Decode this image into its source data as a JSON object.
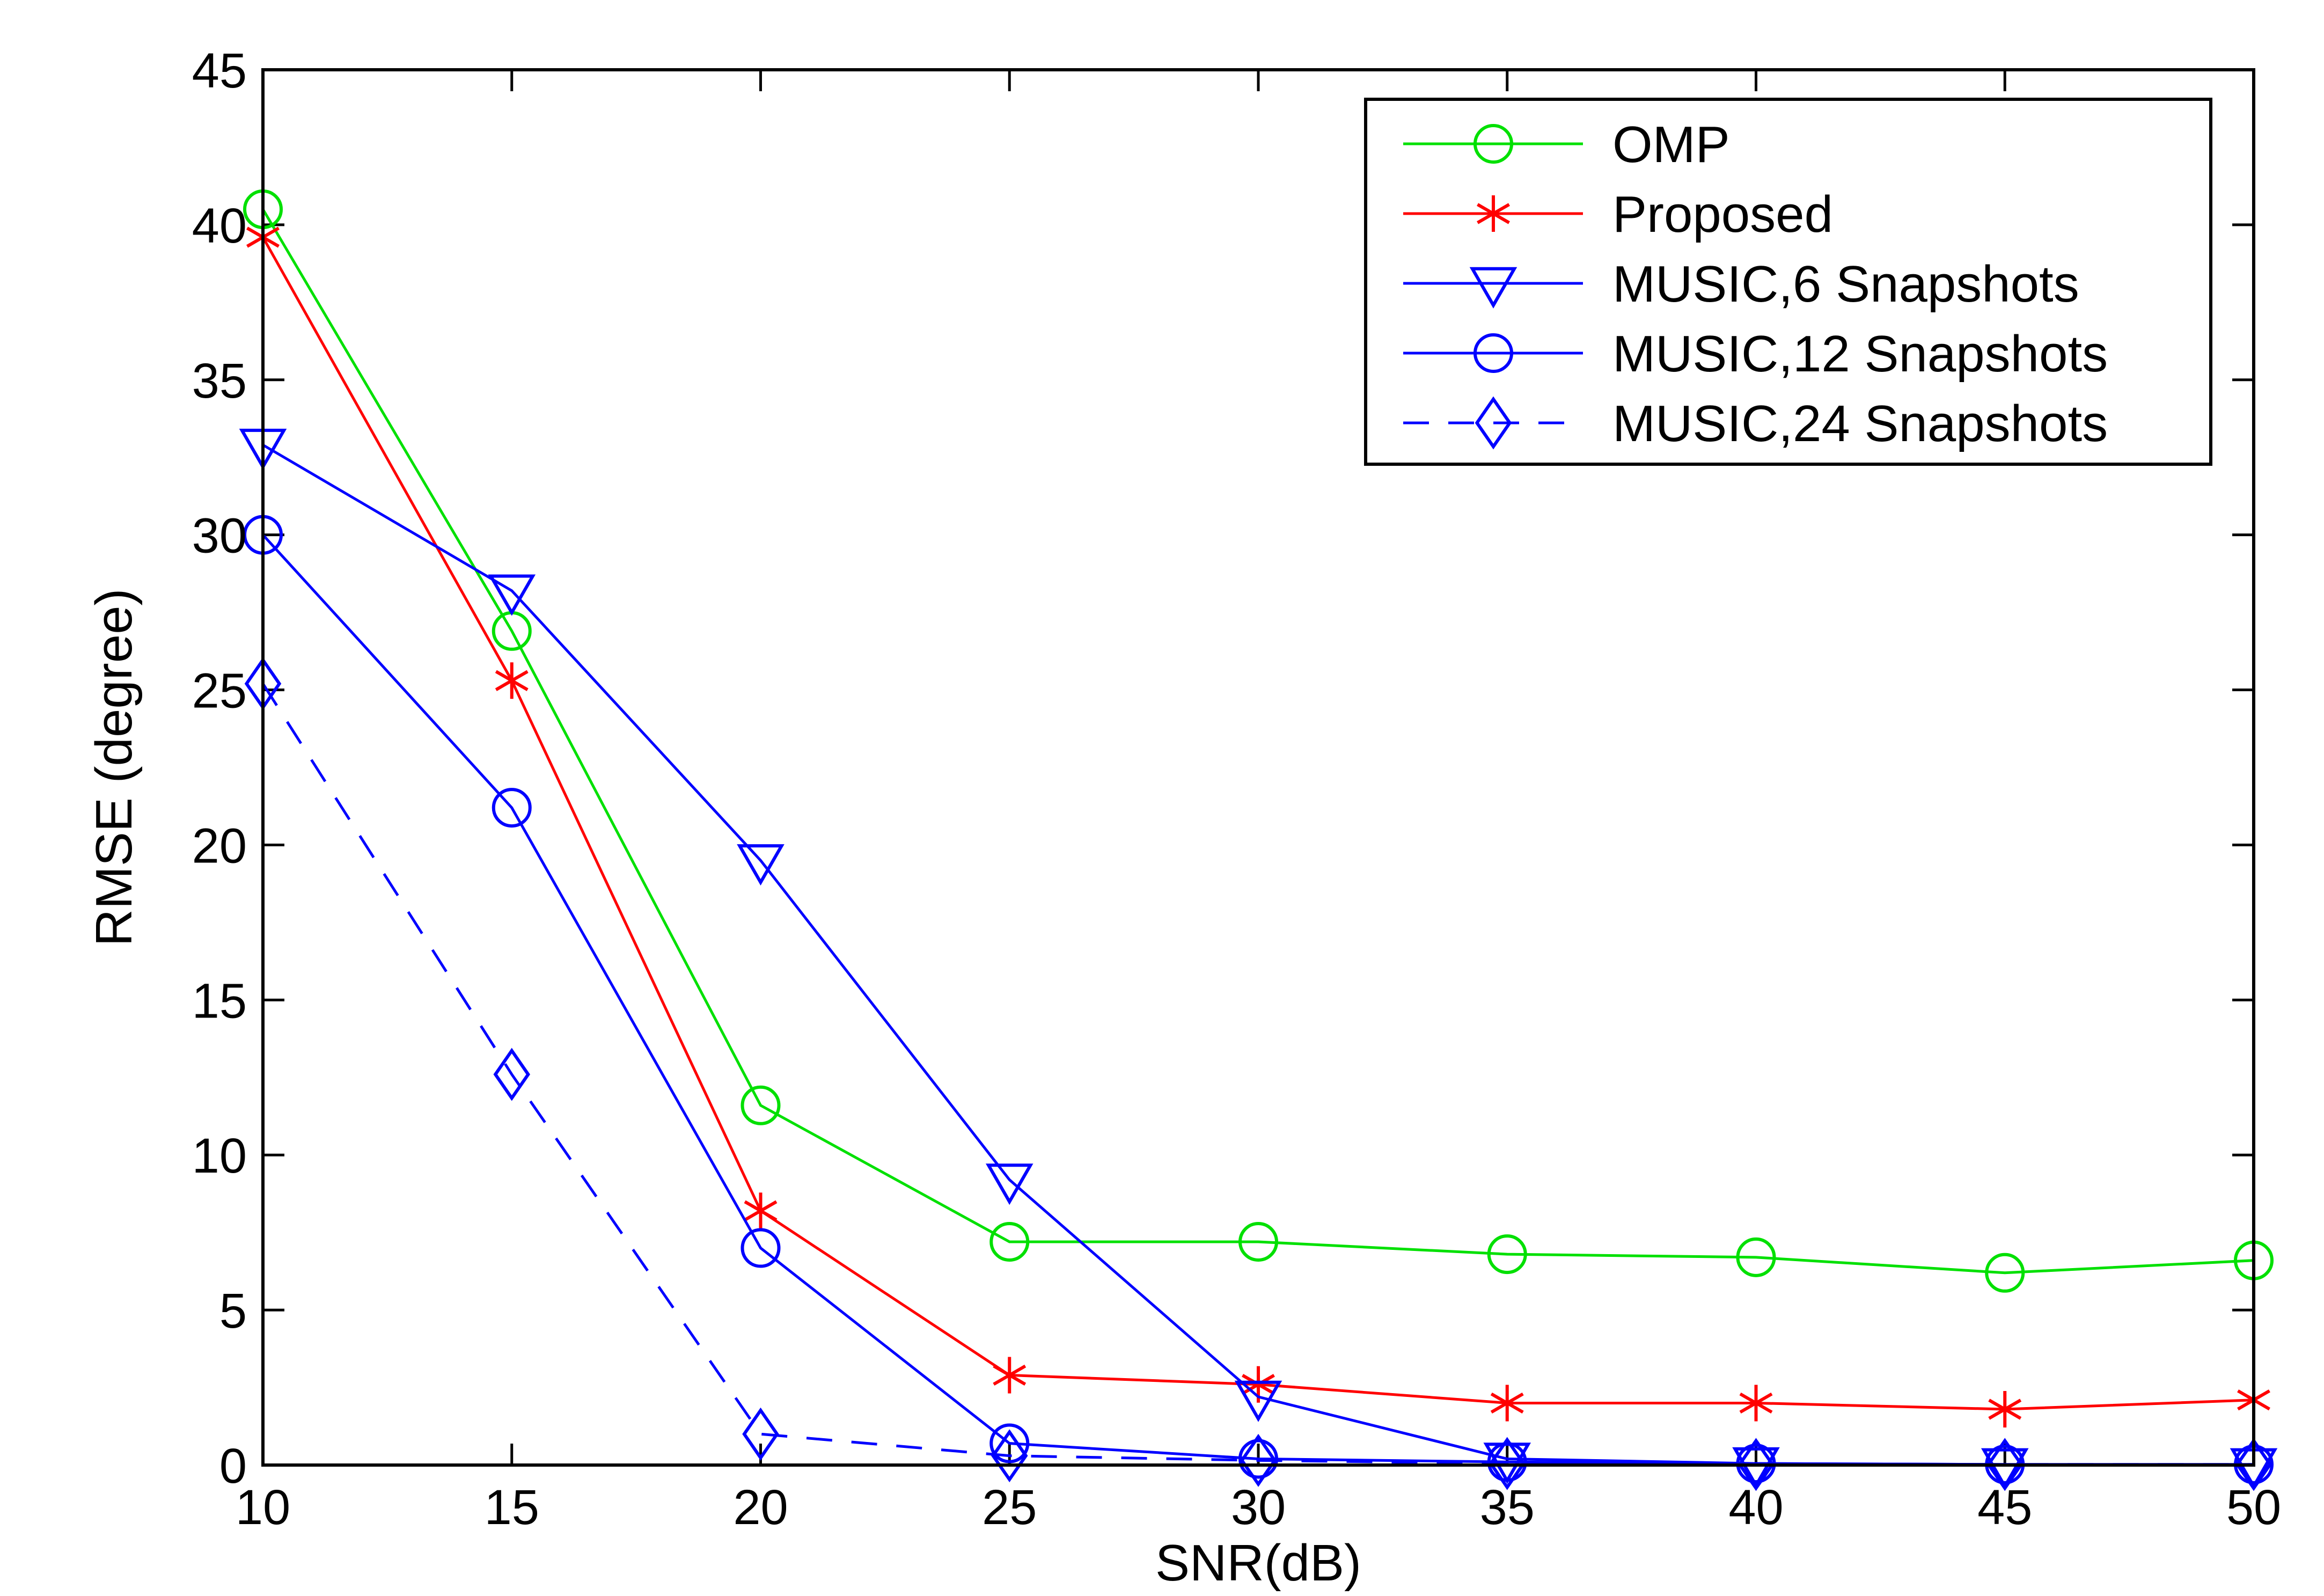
{
  "chart_data": {
    "type": "line",
    "title": "",
    "xlabel": "SNR(dB)",
    "ylabel": "RMSE (degree)",
    "xlim": [
      10,
      50
    ],
    "ylim": [
      0,
      45
    ],
    "xticks": [
      10,
      15,
      20,
      25,
      30,
      35,
      40,
      45,
      50
    ],
    "yticks": [
      0,
      5,
      10,
      15,
      20,
      25,
      30,
      35,
      40,
      45
    ],
    "grid": false,
    "legend_position": "top-right",
    "x": [
      10,
      15,
      20,
      25,
      30,
      35,
      40,
      45,
      50
    ],
    "series": [
      {
        "name": "OMP",
        "color": "#00e000",
        "marker": "circle",
        "line_style": "solid",
        "values": [
          40.5,
          26.9,
          11.6,
          7.2,
          7.2,
          6.8,
          6.7,
          6.2,
          6.6
        ]
      },
      {
        "name": "Proposed",
        "color": "#ff0000",
        "marker": "asterisk",
        "line_style": "solid",
        "values": [
          39.6,
          25.3,
          8.2,
          2.9,
          2.6,
          2.0,
          2.0,
          1.8,
          2.1
        ]
      },
      {
        "name": "MUSIC,6 Snapshots",
        "color": "#0000ff",
        "marker": "triangle-down",
        "line_style": "solid",
        "values": [
          32.9,
          28.2,
          19.5,
          9.2,
          2.2,
          0.2,
          0.05,
          0.02,
          0.02
        ]
      },
      {
        "name": "MUSIC,12 Snapshots",
        "color": "#0000ff",
        "marker": "circle",
        "line_style": "solid",
        "values": [
          30.0,
          21.2,
          7.0,
          0.7,
          0.2,
          0.1,
          0.05,
          0.02,
          0.02
        ]
      },
      {
        "name": "MUSIC,24 Snapshots",
        "color": "#0000ff",
        "marker": "diamond",
        "line_style": "dashed",
        "values": [
          25.2,
          12.6,
          1.0,
          0.3,
          0.15,
          0.05,
          0.02,
          0.02,
          0.02
        ]
      }
    ]
  }
}
